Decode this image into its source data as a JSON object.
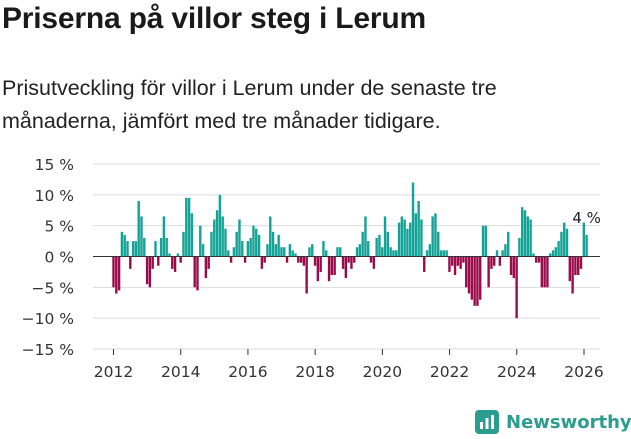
{
  "title": "Priserna på villor steg i Lerum",
  "subtitle": "Prisutveckling för villor i Lerum under de senaste tre månaderna, jämfört med tre månader tidigare.",
  "brand": "Newsworthy",
  "colors": {
    "positive": "#13a296",
    "negative": "#9b0a4a",
    "brand": "#2a9d8f",
    "grid": "#dcdcdc"
  },
  "chart_data": {
    "type": "bar",
    "title": "Priserna på villor steg i Lerum",
    "xlabel": "",
    "ylabel": "",
    "ylim": [
      -15,
      15
    ],
    "yticks": [
      -15,
      -10,
      -5,
      0,
      5,
      10,
      15
    ],
    "ytick_labels": [
      "−15 %",
      "−10 %",
      "−5 %",
      "0 %",
      "5 %",
      "10 %",
      "15 %"
    ],
    "xtick_values": [
      2012,
      2014,
      2016,
      2018,
      2020,
      2022,
      2024,
      2026
    ],
    "xtick_labels": [
      "2012",
      "2014",
      "2016",
      "2018",
      "2020",
      "2022",
      "2024",
      "2026"
    ],
    "x_start": 2012.0,
    "x_step": 0.0833,
    "last_label": "4 %",
    "values": [
      -5,
      -6,
      -5.5,
      4,
      3.5,
      2.5,
      -2,
      2.5,
      2.5,
      9,
      6.5,
      3,
      -4.5,
      -5,
      -2,
      2.5,
      -1.5,
      3,
      6.5,
      3,
      0.5,
      -2,
      -2.5,
      0.5,
      -1,
      4,
      9.5,
      9.5,
      7,
      -5,
      -5.5,
      5,
      2,
      -3.5,
      -2,
      4,
      6,
      7.5,
      10,
      6.5,
      4.5,
      1,
      -1,
      1.5,
      4,
      6,
      2.5,
      -1,
      2.5,
      3,
      5,
      4.5,
      3.5,
      -2,
      -1,
      2,
      6.5,
      4,
      2,
      3.5,
      1.5,
      1.5,
      -1,
      2,
      1,
      0.5,
      -1,
      -1,
      -1.5,
      -6,
      1.5,
      2,
      -1.5,
      -4,
      -2.5,
      2.5,
      1,
      -4,
      -3,
      -3,
      1.5,
      1.5,
      -2,
      -3.5,
      -1,
      -2,
      -1,
      1.5,
      2,
      4,
      6.5,
      2.5,
      -1,
      -2,
      3,
      3.5,
      1.5,
      6.5,
      4,
      1.5,
      1,
      1,
      5.5,
      6.5,
      6,
      4.5,
      5.5,
      12,
      7,
      9,
      6,
      -2.5,
      1,
      2,
      6.5,
      7,
      4,
      1,
      1,
      1,
      -2.5,
      -1.5,
      -3,
      -1.5,
      -2,
      -1,
      -5,
      -6,
      -7,
      -8,
      -8,
      -7,
      5,
      5,
      -5,
      -2,
      -1.5,
      1,
      -1.5,
      1,
      2,
      4,
      -3,
      -3.5,
      -10,
      3,
      8,
      7.5,
      6.5,
      6,
      0.5,
      -1,
      -1,
      -5,
      -5,
      -5,
      0.5,
      1,
      1.5,
      2.5,
      4,
      5.5,
      4.5,
      -4,
      -6,
      -3,
      -3,
      -2,
      5.5,
      3.5
    ]
  }
}
